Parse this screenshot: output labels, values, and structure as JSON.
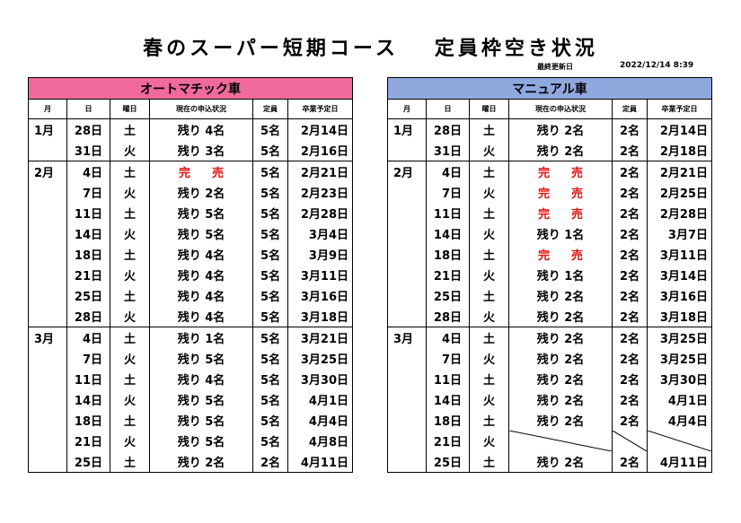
{
  "title_part1": "春のスーパー短期コース",
  "title_part2": "定員枠空き状況",
  "updated_label": "最終更新日",
  "updated_value": "2022/12/14 8:39",
  "columns": [
    "月",
    "日",
    "曜日",
    "現在の申込状況",
    "定員",
    "卒業予定日"
  ],
  "soldout_label": "完売",
  "panels": [
    {
      "name": "オートマチック車",
      "rows": [
        {
          "m": "1月",
          "d": "28日",
          "w": "土",
          "s": "残り 4名",
          "c": "5名",
          "g": "2月14日"
        },
        {
          "m": "",
          "d": "31日",
          "w": "火",
          "s": "残り 3名",
          "c": "5名",
          "g": "2月16日"
        },
        {
          "m": "2月",
          "d": "4日",
          "w": "土",
          "s": "完売",
          "soldout": true,
          "c": "5名",
          "g": "2月21日"
        },
        {
          "m": "",
          "d": "7日",
          "w": "火",
          "s": "残り 2名",
          "c": "5名",
          "g": "2月23日"
        },
        {
          "m": "",
          "d": "11日",
          "w": "土",
          "s": "残り 5名",
          "c": "5名",
          "g": "2月28日"
        },
        {
          "m": "",
          "d": "14日",
          "w": "火",
          "s": "残り 5名",
          "c": "5名",
          "g": "3月4日"
        },
        {
          "m": "",
          "d": "18日",
          "w": "土",
          "s": "残り 4名",
          "c": "5名",
          "g": "3月9日"
        },
        {
          "m": "",
          "d": "21日",
          "w": "火",
          "s": "残り 4名",
          "c": "5名",
          "g": "3月11日"
        },
        {
          "m": "",
          "d": "25日",
          "w": "土",
          "s": "残り 4名",
          "c": "5名",
          "g": "3月16日"
        },
        {
          "m": "",
          "d": "28日",
          "w": "火",
          "s": "残り 4名",
          "c": "5名",
          "g": "3月18日"
        },
        {
          "m": "3月",
          "d": "4日",
          "w": "土",
          "s": "残り 1名",
          "c": "5名",
          "g": "3月21日"
        },
        {
          "m": "",
          "d": "7日",
          "w": "火",
          "s": "残り 5名",
          "c": "5名",
          "g": "3月25日"
        },
        {
          "m": "",
          "d": "11日",
          "w": "土",
          "s": "残り 4名",
          "c": "5名",
          "g": "3月30日"
        },
        {
          "m": "",
          "d": "14日",
          "w": "火",
          "s": "残り 5名",
          "c": "5名",
          "g": "4月1日"
        },
        {
          "m": "",
          "d": "18日",
          "w": "土",
          "s": "残り 5名",
          "c": "5名",
          "g": "4月4日"
        },
        {
          "m": "",
          "d": "21日",
          "w": "火",
          "s": "残り 5名",
          "c": "5名",
          "g": "4月8日"
        },
        {
          "m": "",
          "d": "25日",
          "w": "土",
          "s": "残り 2名",
          "c": "2名",
          "g": "4月11日"
        }
      ]
    },
    {
      "name": "マニュアル車",
      "rows": [
        {
          "m": "1月",
          "d": "28日",
          "w": "土",
          "s": "残り 2名",
          "c": "2名",
          "g": "2月14日"
        },
        {
          "m": "",
          "d": "31日",
          "w": "火",
          "s": "残り 2名",
          "c": "2名",
          "g": "2月18日"
        },
        {
          "m": "2月",
          "d": "4日",
          "w": "土",
          "s": "完売",
          "soldout": true,
          "c": "2名",
          "g": "2月21日"
        },
        {
          "m": "",
          "d": "7日",
          "w": "火",
          "s": "完売",
          "soldout": true,
          "c": "2名",
          "g": "2月25日"
        },
        {
          "m": "",
          "d": "11日",
          "w": "土",
          "s": "完売",
          "soldout": true,
          "c": "2名",
          "g": "2月28日"
        },
        {
          "m": "",
          "d": "14日",
          "w": "火",
          "s": "残り 1名",
          "c": "2名",
          "g": "3月7日"
        },
        {
          "m": "",
          "d": "18日",
          "w": "土",
          "s": "完売",
          "soldout": true,
          "c": "2名",
          "g": "3月11日"
        },
        {
          "m": "",
          "d": "21日",
          "w": "火",
          "s": "残り 1名",
          "c": "2名",
          "g": "3月14日"
        },
        {
          "m": "",
          "d": "25日",
          "w": "土",
          "s": "残り 2名",
          "c": "2名",
          "g": "3月16日"
        },
        {
          "m": "",
          "d": "28日",
          "w": "火",
          "s": "残り 2名",
          "c": "2名",
          "g": "3月18日"
        },
        {
          "m": "3月",
          "d": "4日",
          "w": "土",
          "s": "残り 2名",
          "c": "2名",
          "g": "3月25日"
        },
        {
          "m": "",
          "d": "7日",
          "w": "火",
          "s": "残り 2名",
          "c": "2名",
          "g": "3月25日"
        },
        {
          "m": "",
          "d": "11日",
          "w": "土",
          "s": "残り 2名",
          "c": "2名",
          "g": "3月30日"
        },
        {
          "m": "",
          "d": "14日",
          "w": "火",
          "s": "残り 2名",
          "c": "2名",
          "g": "4月1日"
        },
        {
          "m": "",
          "d": "18日",
          "w": "土",
          "s": "残り 2名",
          "c": "2名",
          "g": "4月4日"
        },
        {
          "m": "",
          "d": "21日",
          "w": "火",
          "s": "",
          "blank": true,
          "c": "",
          "g": ""
        },
        {
          "m": "",
          "d": "25日",
          "w": "土",
          "s": "残り 2名",
          "c": "2名",
          "g": "4月11日"
        }
      ]
    }
  ]
}
